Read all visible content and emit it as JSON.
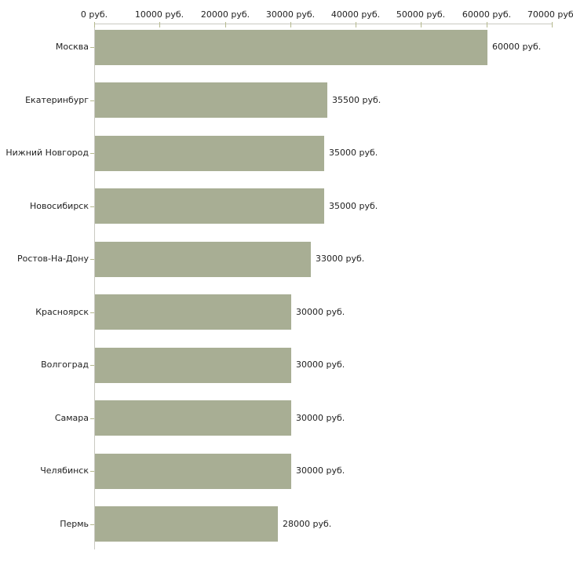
{
  "chart_data": {
    "type": "bar",
    "orientation": "horizontal",
    "title": "",
    "xlabel": "",
    "ylabel": "",
    "unit": "руб.",
    "grid": false,
    "legend": null,
    "xlim": [
      0,
      70000
    ],
    "x_tick_step": 10000,
    "x_tick_labels": [
      "0 руб.",
      "10000 руб.",
      "20000 руб.",
      "30000 руб.",
      "40000 руб.",
      "50000 руб.",
      "60000 руб.",
      "70000 руб."
    ],
    "categories": [
      "Москва",
      "Екатеринбург",
      "Нижний Новгород",
      "Новосибирск",
      "Ростов-На-Дону",
      "Красноярск",
      "Волгоград",
      "Самара",
      "Челябинск",
      "Пермь"
    ],
    "values": [
      60000,
      35500,
      35000,
      35000,
      33000,
      30000,
      30000,
      30000,
      30000,
      28000
    ],
    "value_labels": [
      "60000 руб.",
      "35500 руб.",
      "35000 руб.",
      "35000 руб.",
      "33000 руб.",
      "30000 руб.",
      "30000 руб.",
      "30000 руб.",
      "30000 руб.",
      "28000 руб."
    ],
    "colors": {
      "bar": "#a8ae94",
      "axis_line": "#c9c9c1",
      "tick": "#b5b98e",
      "text": "#222222",
      "background": "#ffffff"
    }
  }
}
